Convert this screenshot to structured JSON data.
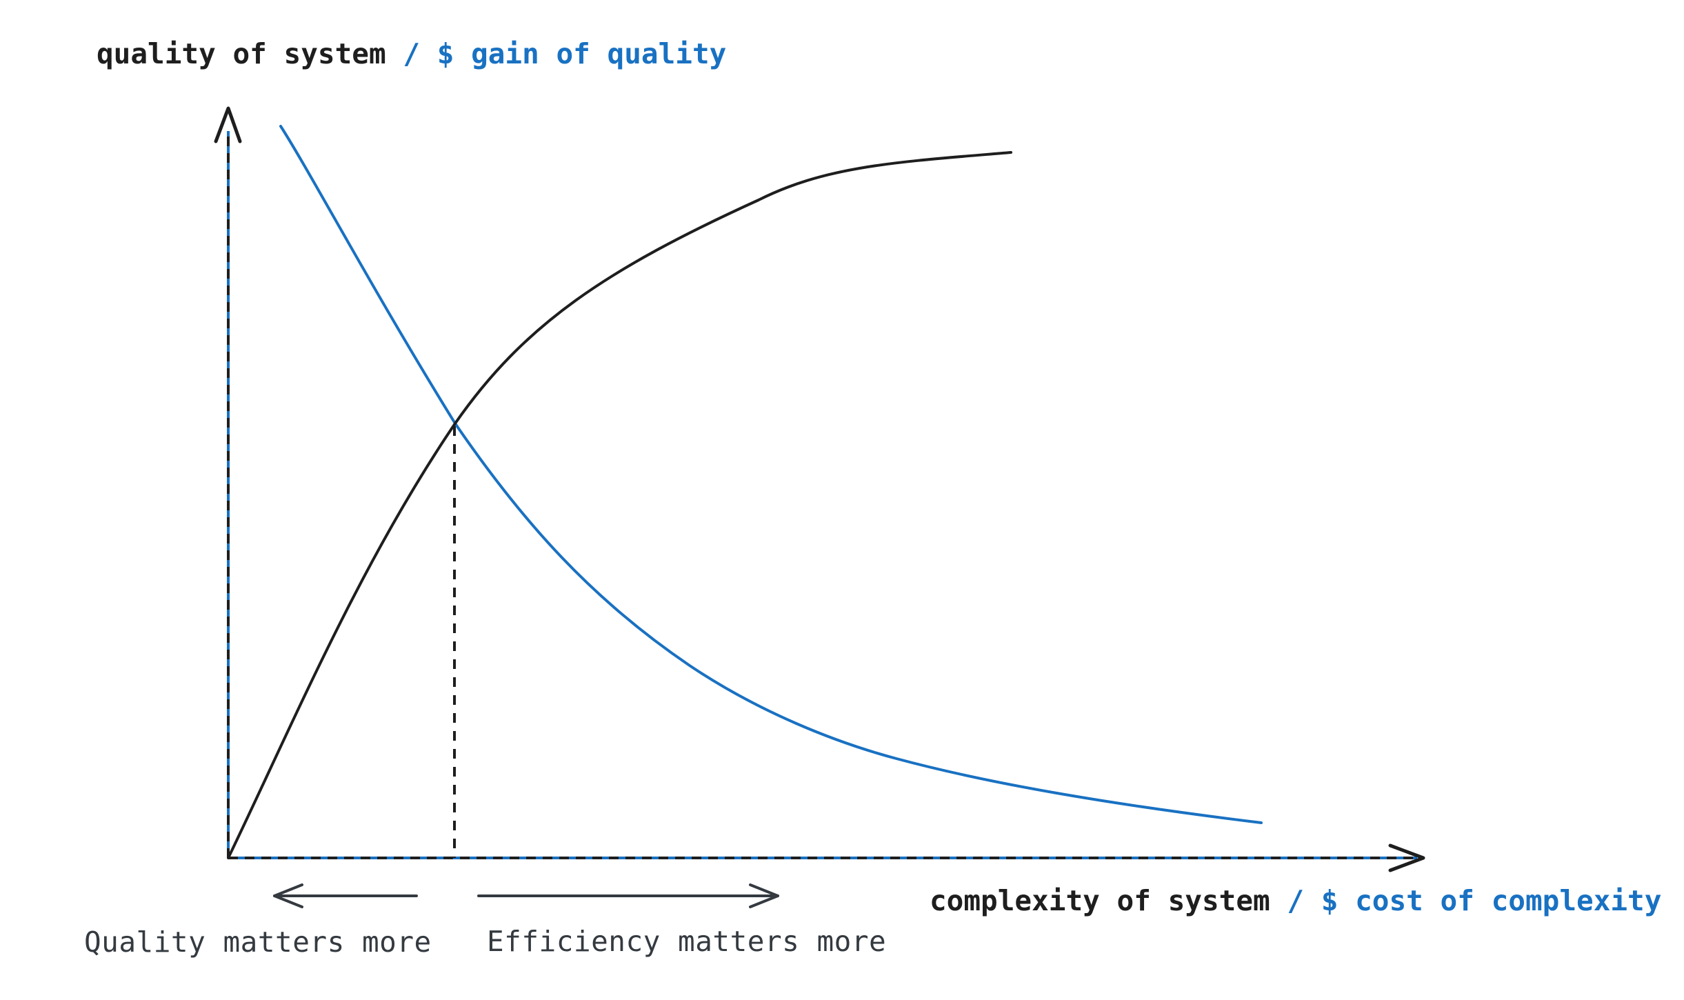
{
  "y_axis": {
    "primary": "quality of system",
    "secondary": "/ $ gain of quality"
  },
  "x_axis": {
    "primary": "complexity of system",
    "secondary": "/ $ cost of complexity"
  },
  "regions": {
    "left": "Quality matters more",
    "right": "Efficiency matters more"
  },
  "colors": {
    "primary": "#1e1e1e",
    "accent": "#1971c2",
    "region_text": "#343a40"
  },
  "curves": [
    {
      "name": "quality of system",
      "color": "#1e1e1e"
    },
    {
      "name": "$ gain of quality",
      "color": "#1971c2"
    }
  ]
}
